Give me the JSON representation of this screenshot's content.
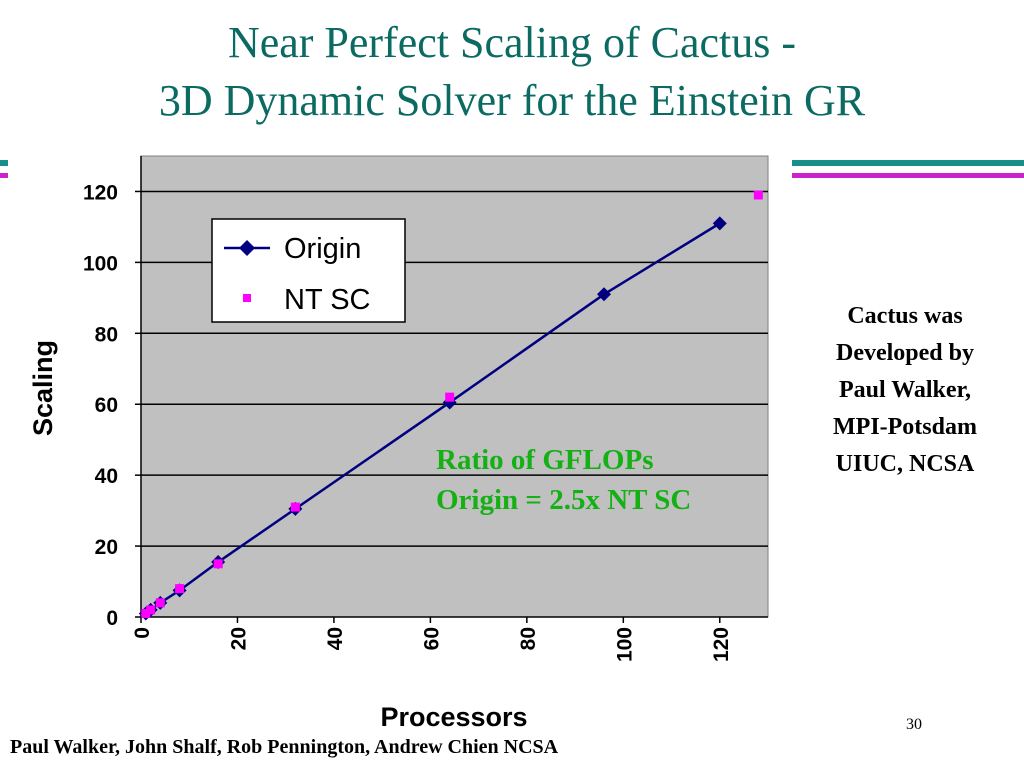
{
  "slide": {
    "title_line1": "Near Perfect Scaling of Cactus -",
    "title_line2": "3D Dynamic Solver for the Einstein GR",
    "note_lines": [
      "Cactus was",
      "Developed by",
      "Paul Walker,",
      "MPI-Potsdam",
      "UIUC, NCSA"
    ],
    "ratio_lines": [
      "Ratio of GFLOPs",
      "Origin = 2.5x NT SC"
    ],
    "footer": "Paul Walker, John Shalf, Rob Pennington, Andrew Chien NCSA",
    "page_number": "30",
    "colors": {
      "title": "#0b6b63",
      "bar_teal": "#1a8f8a",
      "bar_magenta": "#cc22cc",
      "ratio_text": "#14b014"
    }
  },
  "chart_data": {
    "type": "line",
    "title": "",
    "xlabel": "Processors",
    "ylabel": "Scaling",
    "xlim": [
      0,
      130
    ],
    "ylim": [
      0,
      130
    ],
    "x_ticks": [
      0,
      20,
      40,
      60,
      80,
      100,
      120
    ],
    "y_ticks": [
      0,
      20,
      40,
      60,
      80,
      100,
      120
    ],
    "grid": "horizontal",
    "legend": "top-left",
    "plot_background": "#c0c0c0",
    "series": [
      {
        "name": "Origin",
        "style": "line-diamond",
        "color": "#000080",
        "x": [
          1,
          2,
          4,
          8,
          16,
          32,
          64,
          96,
          120
        ],
        "y": [
          1,
          2,
          4,
          7.5,
          15.5,
          30.5,
          60.5,
          91,
          111
        ]
      },
      {
        "name": "NT SC",
        "style": "square",
        "color": "#ff00ff",
        "x": [
          1,
          2,
          4,
          8,
          16,
          32,
          64,
          128
        ],
        "y": [
          1,
          2,
          4,
          8,
          15,
          31,
          62,
          119
        ]
      }
    ]
  }
}
